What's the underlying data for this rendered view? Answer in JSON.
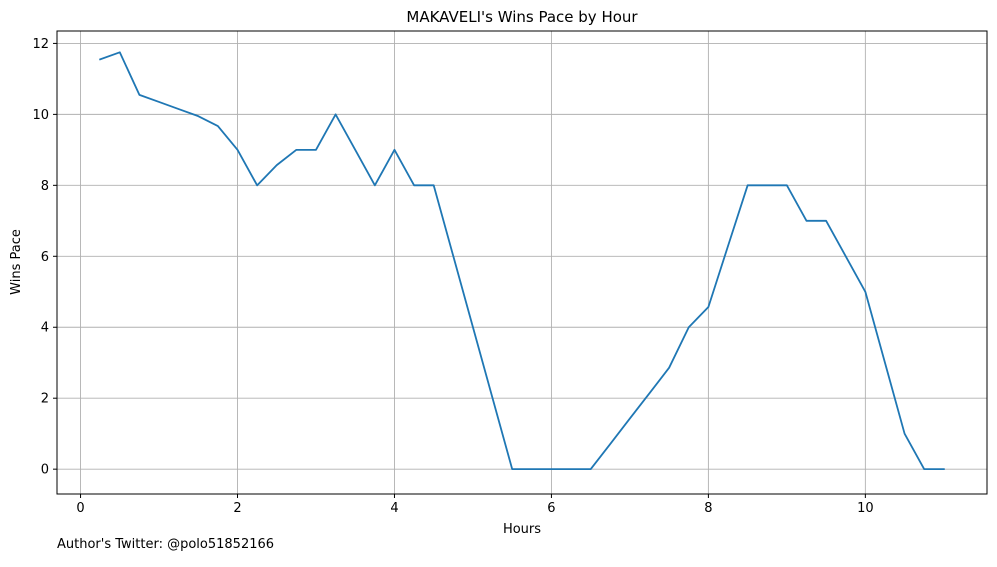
{
  "footnote": "Author's Twitter: @polo51852166",
  "chart_data": {
    "type": "line",
    "title": "MAKAVELI's Wins Pace by Hour",
    "xlabel": "Hours",
    "ylabel": "Wins Pace",
    "xlim": [
      -0.3,
      11.55
    ],
    "ylim": [
      -0.7,
      12.35
    ],
    "xticks": [
      0,
      2,
      4,
      6,
      8,
      10
    ],
    "yticks": [
      0,
      2,
      4,
      6,
      8,
      10,
      12
    ],
    "grid": true,
    "series_color": "#1f77b4",
    "x": [
      0.25,
      0.5,
      0.75,
      1.0,
      1.25,
      1.5,
      1.75,
      2.0,
      2.25,
      2.5,
      2.75,
      3.0,
      3.25,
      3.5,
      3.75,
      4.0,
      4.25,
      4.5,
      4.75,
      5.0,
      5.25,
      5.5,
      5.75,
      6.0,
      6.25,
      6.5,
      6.75,
      7.0,
      7.25,
      7.5,
      7.75,
      8.0,
      8.25,
      8.5,
      8.75,
      9.0,
      9.25,
      9.5,
      9.75,
      10.0,
      10.25,
      10.5,
      10.75,
      11.0
    ],
    "y": [
      11.55,
      11.75,
      10.55,
      10.35,
      10.15,
      9.95,
      9.67,
      9.0,
      8.0,
      8.57,
      9.0,
      9.0,
      10.0,
      9.0,
      8.0,
      9.0,
      8.0,
      8.0,
      6.0,
      4.0,
      2.0,
      0.0,
      0.0,
      0.0,
      0.0,
      0.0,
      0.71,
      1.43,
      2.14,
      2.86,
      4.0,
      4.57,
      6.29,
      8.0,
      8.0,
      8.0,
      7.0,
      7.0,
      6.0,
      5.0,
      3.0,
      1.0,
      0.0,
      0.0
    ]
  }
}
